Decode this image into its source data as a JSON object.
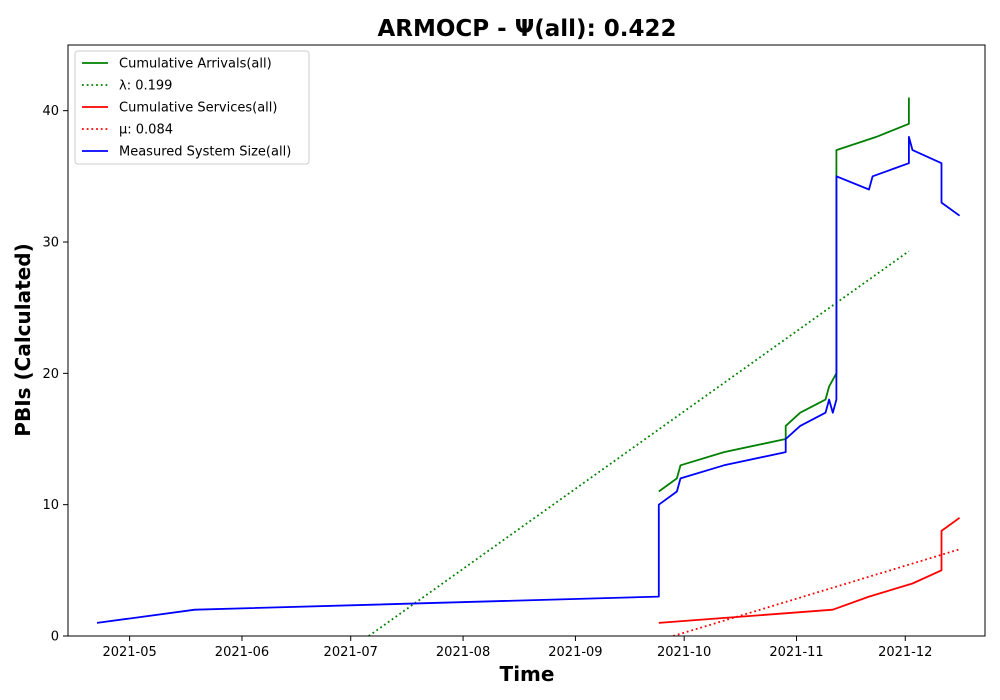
{
  "chart_data": {
    "type": "line",
    "title": "ARMOCP -  Ψ(all): 0.422",
    "xlabel": "Time",
    "ylabel": "PBIs (Calculated)",
    "xlim": [
      "2021-04-14",
      "2021-12-23"
    ],
    "ylim": [
      0,
      45
    ],
    "xticks": [
      "2021-05",
      "2021-06",
      "2021-07",
      "2021-08",
      "2021-09",
      "2021-10",
      "2021-11",
      "2021-12"
    ],
    "yticks": [
      0,
      10,
      20,
      30,
      40
    ],
    "grid": false,
    "legend_position": "upper left",
    "series": [
      {
        "name": "Cumulative Arrivals(all)",
        "color": "#008000",
        "style": "solid",
        "points": [
          [
            "2021-09-24",
            11
          ],
          [
            "2021-09-29",
            12
          ],
          [
            "2021-09-30",
            13
          ],
          [
            "2021-10-12",
            14
          ],
          [
            "2021-10-29",
            15
          ],
          [
            "2021-10-29",
            16
          ],
          [
            "2021-11-02",
            17
          ],
          [
            "2021-11-09",
            18
          ],
          [
            "2021-11-10",
            19
          ],
          [
            "2021-11-12",
            20
          ],
          [
            "2021-11-12",
            37
          ],
          [
            "2021-11-23",
            38
          ],
          [
            "2021-12-02",
            39
          ],
          [
            "2021-12-02",
            41
          ]
        ]
      },
      {
        "name": "λ: 0.199",
        "color": "#008000",
        "style": "dotted",
        "points": [
          [
            "2021-07-06",
            0
          ],
          [
            "2021-12-02",
            29.3
          ]
        ]
      },
      {
        "name": "Cumulative Services(all)",
        "color": "#ff0000",
        "style": "solid",
        "points": [
          [
            "2021-09-24",
            1
          ],
          [
            "2021-11-11",
            2
          ],
          [
            "2021-11-21",
            3
          ],
          [
            "2021-12-03",
            4
          ],
          [
            "2021-12-11",
            5
          ],
          [
            "2021-12-11",
            8
          ],
          [
            "2021-12-16",
            9
          ]
        ]
      },
      {
        "name": "μ: 0.084",
        "color": "#ff0000",
        "style": "dotted",
        "points": [
          [
            "2021-09-28",
            0
          ],
          [
            "2021-12-16",
            6.6
          ]
        ]
      },
      {
        "name": "Measured System Size(all)",
        "color": "#0000ff",
        "style": "solid",
        "points": [
          [
            "2021-04-22",
            1
          ],
          [
            "2021-05-19",
            2
          ],
          [
            "2021-09-24",
            3
          ],
          [
            "2021-09-24",
            10
          ],
          [
            "2021-09-29",
            11
          ],
          [
            "2021-09-30",
            12
          ],
          [
            "2021-10-12",
            13
          ],
          [
            "2021-10-29",
            14
          ],
          [
            "2021-10-29",
            15
          ],
          [
            "2021-11-02",
            16
          ],
          [
            "2021-11-09",
            17
          ],
          [
            "2021-11-10",
            18
          ],
          [
            "2021-11-11",
            17
          ],
          [
            "2021-11-12",
            18
          ],
          [
            "2021-11-12",
            30
          ],
          [
            "2021-11-12",
            35
          ],
          [
            "2021-11-21",
            34
          ],
          [
            "2021-11-22",
            35
          ],
          [
            "2021-12-02",
            36
          ],
          [
            "2021-12-02",
            38
          ],
          [
            "2021-12-03",
            37
          ],
          [
            "2021-12-11",
            36
          ],
          [
            "2021-12-11",
            33
          ],
          [
            "2021-12-16",
            32
          ]
        ]
      }
    ]
  }
}
